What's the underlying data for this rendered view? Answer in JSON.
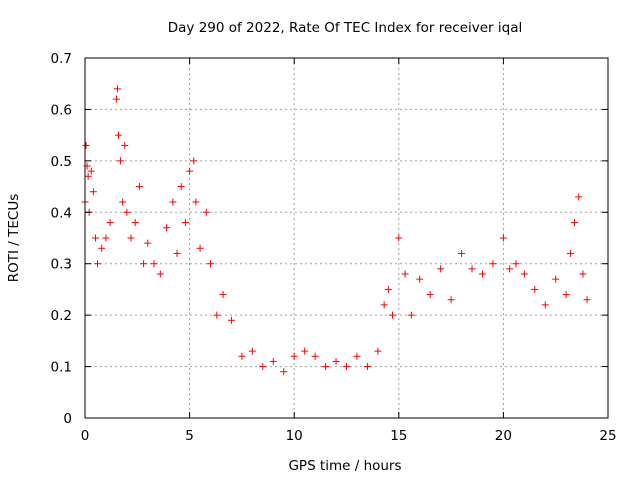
{
  "chart_data": {
    "type": "scatter",
    "title": "Day 290 of 2022, Rate Of TEC Index for receiver iqal",
    "xlabel": "GPS time / hours",
    "ylabel": "ROTI / TECUs",
    "xlim": [
      0,
      25
    ],
    "ylim": [
      0,
      0.7
    ],
    "x_ticks": [
      "0",
      "5",
      "10",
      "15",
      "20",
      "25"
    ],
    "y_ticks": [
      "0",
      "0.1",
      "0.2",
      "0.3",
      "0.4",
      "0.5",
      "0.6",
      "0.7"
    ],
    "grid": true,
    "marker": "+",
    "color": "#ff0000",
    "series": [
      {
        "x": [
          0.0,
          0.05,
          0.1,
          0.15,
          0.2,
          0.3,
          0.4,
          0.5,
          0.6,
          0.8,
          1.0,
          1.2,
          1.5,
          1.55,
          1.6,
          1.7,
          1.8,
          1.9,
          2.0,
          2.2,
          2.4,
          2.6,
          2.8,
          3.0,
          3.3,
          3.6,
          3.9,
          4.2,
          4.4,
          4.6,
          4.8,
          5.0,
          5.2,
          5.3,
          5.5,
          5.8,
          6.0,
          6.3,
          6.6,
          7.0,
          7.5,
          8.0,
          8.5,
          9.0,
          9.5,
          10.0,
          10.5,
          11.0,
          11.5,
          12.0,
          12.5,
          13.0,
          13.5,
          14.0,
          14.3,
          14.5,
          14.7,
          15.0,
          15.3,
          15.6,
          16.0,
          16.5,
          17.0,
          17.5,
          18.0,
          18.5,
          19.0,
          19.5,
          20.0,
          20.3,
          20.6,
          21.0,
          21.5,
          22.0,
          22.5,
          23.0,
          23.2,
          23.4,
          23.6,
          23.8,
          24.0
        ],
        "y": [
          0.42,
          0.53,
          0.49,
          0.47,
          0.4,
          0.48,
          0.44,
          0.35,
          0.3,
          0.33,
          0.35,
          0.38,
          0.62,
          0.64,
          0.55,
          0.5,
          0.42,
          0.53,
          0.4,
          0.35,
          0.38,
          0.45,
          0.3,
          0.34,
          0.3,
          0.28,
          0.37,
          0.42,
          0.32,
          0.45,
          0.38,
          0.48,
          0.5,
          0.42,
          0.33,
          0.4,
          0.3,
          0.2,
          0.24,
          0.19,
          0.12,
          0.13,
          0.1,
          0.11,
          0.09,
          0.12,
          0.13,
          0.12,
          0.1,
          0.11,
          0.1,
          0.12,
          0.1,
          0.13,
          0.22,
          0.25,
          0.2,
          0.35,
          0.28,
          0.2,
          0.27,
          0.24,
          0.29,
          0.23,
          0.32,
          0.29,
          0.28,
          0.3,
          0.35,
          0.29,
          0.3,
          0.28,
          0.25,
          0.22,
          0.27,
          0.24,
          0.32,
          0.38,
          0.43,
          0.28,
          0.23
        ]
      }
    ]
  }
}
